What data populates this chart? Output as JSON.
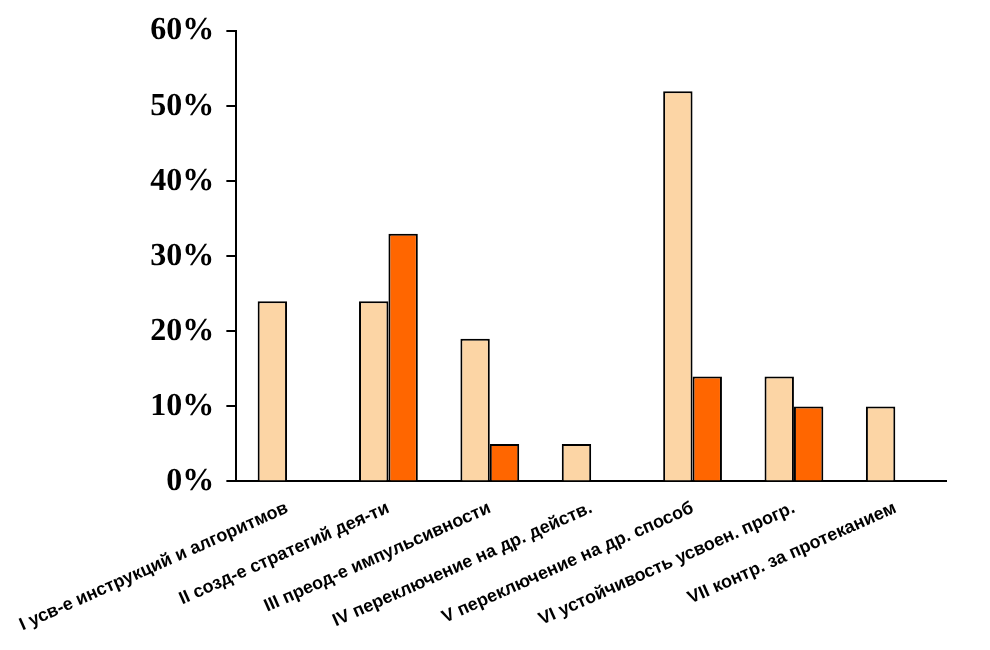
{
  "chart_data": {
    "type": "bar",
    "categories": [
      "I усв-е инструкций и алгоритмов",
      "II созд-е стратегий дея-ти",
      "III преод-е импульсивности",
      "IV переключение на др. действ.",
      "V переключение на др. способ",
      "VI устойчивость усвоен. прогр.",
      "VII контр. за протеканием"
    ],
    "series": [
      {
        "color": "#fcd5a5",
        "values": [
          24,
          24,
          19,
          5,
          52,
          14,
          10
        ]
      },
      {
        "color": "#ff6600",
        "values": [
          null,
          33,
          5,
          null,
          14,
          10,
          null
        ]
      }
    ],
    "ylim": [
      0,
      60
    ],
    "yticks": [
      {
        "value": 0,
        "label": "0%"
      },
      {
        "value": 10,
        "label": "10%"
      },
      {
        "value": 20,
        "label": "20%"
      },
      {
        "value": 30,
        "label": "30%"
      },
      {
        "value": 40,
        "label": "40%"
      },
      {
        "value": 50,
        "label": "50%"
      },
      {
        "value": 60,
        "label": "60%"
      }
    ],
    "grid": false,
    "legend": false
  }
}
